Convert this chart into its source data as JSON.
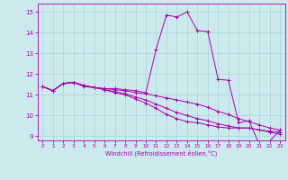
{
  "xlabel": "Windchill (Refroidissement éolien,°C)",
  "background_color": "#cce9ed",
  "line_color": "#aa00aa",
  "grid_color": "#aad4da",
  "xlim": [
    -0.5,
    23.5
  ],
  "ylim": [
    8.8,
    15.4
  ],
  "yticks": [
    9,
    10,
    11,
    12,
    13,
    14,
    15
  ],
  "xticks": [
    0,
    1,
    2,
    3,
    4,
    5,
    6,
    7,
    8,
    9,
    10,
    11,
    12,
    13,
    14,
    15,
    16,
    17,
    18,
    19,
    20,
    21,
    22,
    23
  ],
  "lines": [
    {
      "x": [
        0,
        1,
        2,
        3,
        4,
        5,
        6,
        7,
        8,
        9,
        10,
        11,
        12,
        13,
        14,
        15,
        16,
        17,
        18,
        19,
        20,
        21,
        22,
        23
      ],
      "y": [
        11.4,
        11.2,
        11.55,
        11.6,
        11.4,
        11.35,
        11.3,
        11.3,
        11.25,
        11.2,
        11.1,
        13.2,
        14.85,
        14.75,
        15.0,
        14.1,
        14.05,
        11.75,
        11.7,
        9.65,
        9.75,
        8.6,
        8.75,
        9.3
      ]
    },
    {
      "x": [
        0,
        1,
        2,
        3,
        4,
        5,
        6,
        7,
        8,
        9,
        10,
        11,
        12,
        13,
        14,
        15,
        16,
        17,
        18,
        19,
        20,
        21,
        22,
        23
      ],
      "y": [
        11.4,
        11.2,
        11.55,
        11.6,
        11.45,
        11.35,
        11.3,
        11.25,
        11.2,
        11.1,
        11.05,
        10.95,
        10.85,
        10.75,
        10.65,
        10.55,
        10.4,
        10.2,
        10.05,
        9.85,
        9.7,
        9.55,
        9.4,
        9.3
      ]
    },
    {
      "x": [
        0,
        1,
        2,
        3,
        4,
        5,
        6,
        7,
        8,
        9,
        10,
        11,
        12,
        13,
        14,
        15,
        16,
        17,
        18,
        19,
        20,
        21,
        22,
        23
      ],
      "y": [
        11.4,
        11.2,
        11.55,
        11.6,
        11.45,
        11.35,
        11.25,
        11.15,
        11.05,
        10.9,
        10.75,
        10.55,
        10.35,
        10.15,
        10.0,
        9.85,
        9.75,
        9.6,
        9.5,
        9.4,
        9.4,
        9.3,
        9.25,
        9.2
      ]
    },
    {
      "x": [
        0,
        1,
        2,
        3,
        4,
        5,
        6,
        7,
        8,
        9,
        10,
        11,
        12,
        13,
        14,
        15,
        16,
        17,
        18,
        19,
        20,
        21,
        22,
        23
      ],
      "y": [
        11.4,
        11.2,
        11.55,
        11.6,
        11.45,
        11.35,
        11.25,
        11.1,
        11.0,
        10.8,
        10.6,
        10.35,
        10.05,
        9.85,
        9.7,
        9.65,
        9.55,
        9.45,
        9.4,
        9.4,
        9.4,
        9.3,
        9.2,
        9.1
      ]
    }
  ]
}
